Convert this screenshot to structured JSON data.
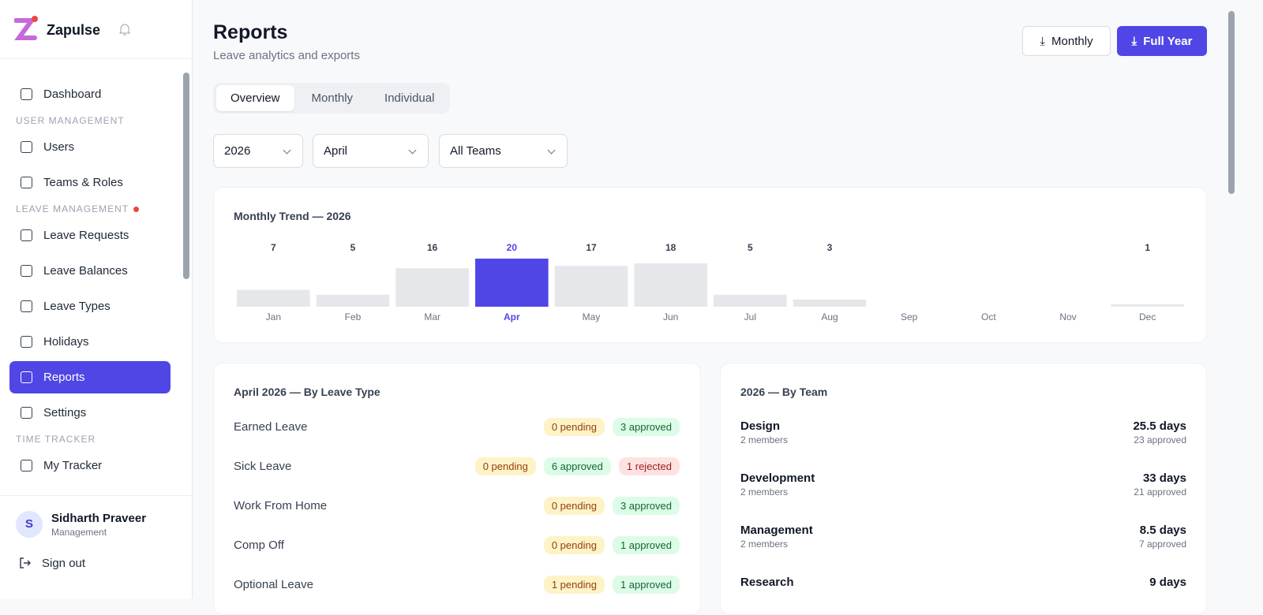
{
  "app": {
    "name": "Zapulse"
  },
  "nav": {
    "items": [
      {
        "label": "Dashboard"
      }
    ],
    "sections": [
      {
        "title": "USER MANAGEMENT",
        "items": [
          "Users",
          "Teams & Roles"
        ]
      },
      {
        "title": "LEAVE MANAGEMENT",
        "items": [
          "Leave Requests",
          "Leave Balances",
          "Leave Types",
          "Holidays",
          "Reports",
          "Settings"
        ]
      },
      {
        "title": "TIME TRACKER",
        "items": [
          "My Tracker"
        ]
      }
    ],
    "active": "Reports"
  },
  "user": {
    "initial": "S",
    "name": "Sidharth Praveer",
    "role": "Management",
    "sign_out": "Sign out"
  },
  "header": {
    "title": "Reports",
    "subtitle": "Leave analytics and exports",
    "buttons": [
      "Monthly",
      "Full Year"
    ]
  },
  "tabs": {
    "items": [
      "Overview",
      "Monthly",
      "Individual"
    ],
    "active": "Overview"
  },
  "filters": [
    "2026",
    "April",
    "All Teams"
  ],
  "trend": {
    "title": "Monthly Trend — 2026",
    "categories": [
      "Jan",
      "Feb",
      "Mar",
      "Apr",
      "May",
      "Jun",
      "Jul",
      "Aug",
      "Sep",
      "Oct",
      "Nov",
      "Dec"
    ],
    "values": [
      7,
      5,
      16,
      20,
      17,
      18,
      5,
      3,
      null,
      null,
      null,
      1
    ],
    "color": "#e5e7eb",
    "highlight": "Apr",
    "highlight_color": "#4f46e5"
  },
  "by_type": {
    "title": "April 2026 — By Leave Type",
    "rows": [
      {
        "name": "Earned Leave",
        "badges": [
          "0 pending",
          "3 approved"
        ]
      },
      {
        "name": "Sick Leave",
        "badges": [
          "0 pending",
          "6 approved",
          "1 rejected"
        ]
      },
      {
        "name": "Work From Home",
        "badges": [
          "0 pending",
          "3 approved"
        ]
      },
      {
        "name": "Comp Off",
        "badges": [
          "0 pending",
          "1 approved"
        ]
      },
      {
        "name": "Optional Leave",
        "badges": [
          "1 pending",
          "1 approved"
        ]
      }
    ]
  },
  "by_team": {
    "title": "2026 — By Team",
    "rows": [
      {
        "name": "Design",
        "members": "2 members",
        "days": "25.5 days",
        "approved": "23 approved"
      },
      {
        "name": "Development",
        "members": "2 members",
        "days": "33 days",
        "approved": "21 approved"
      },
      {
        "name": "Management",
        "members": "2 members",
        "days": "8.5 days",
        "approved": "7 approved"
      },
      {
        "name": "Research",
        "days": "9 days"
      }
    ]
  }
}
